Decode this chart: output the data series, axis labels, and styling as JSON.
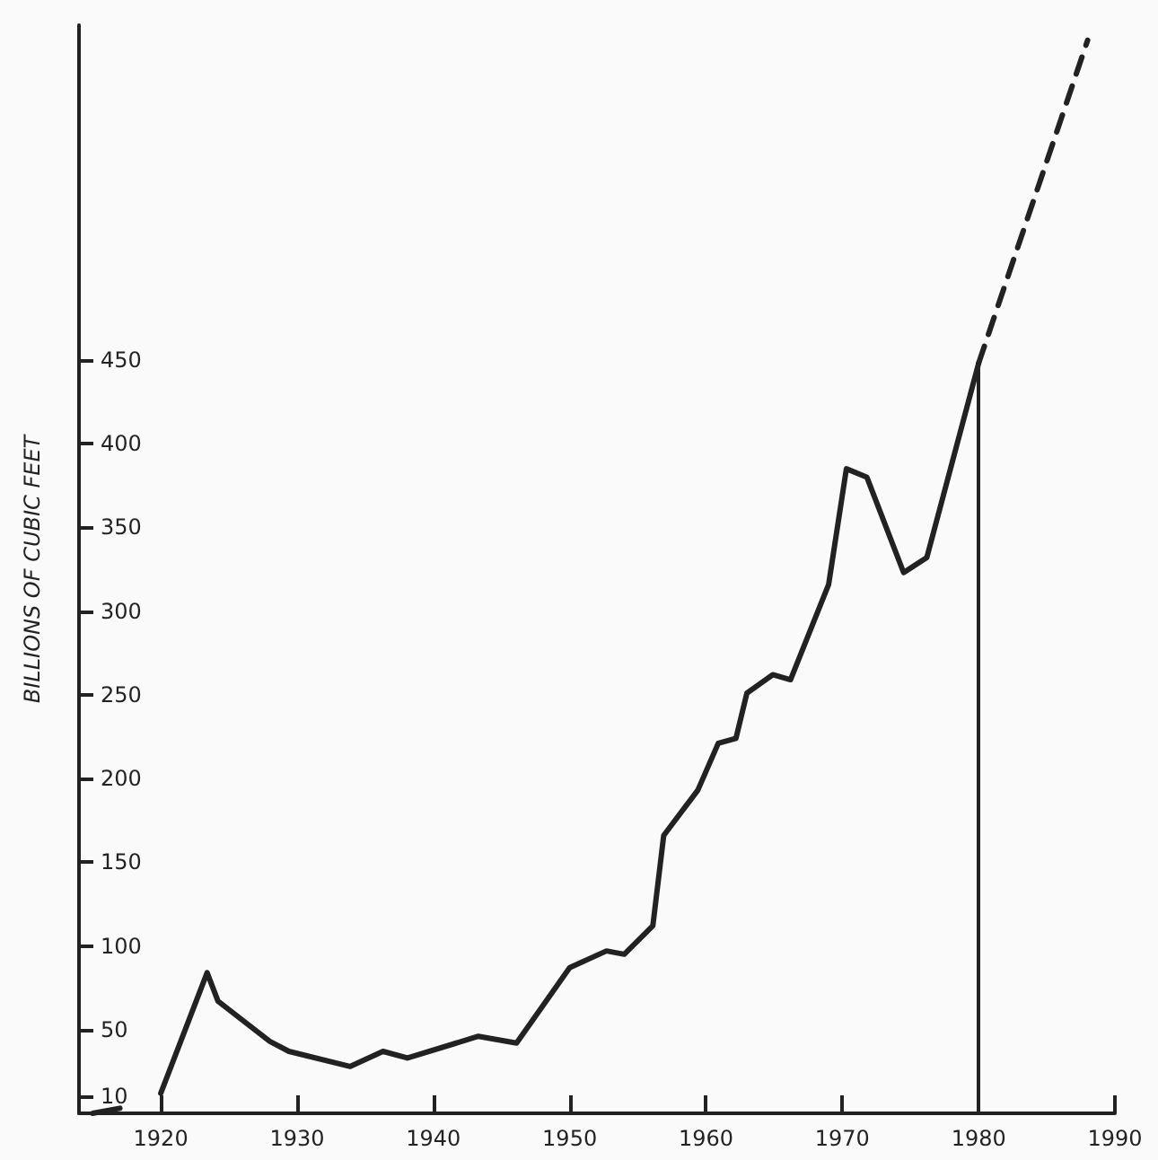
{
  "chart_data": {
    "type": "line",
    "ylabel": "BILLIONS OF CUBIC FEET",
    "xlim": [
      1914,
      1990
    ],
    "xticks": [
      1920,
      1930,
      1940,
      1950,
      1960,
      1970,
      1980,
      1990
    ],
    "ylim": [
      0,
      650
    ],
    "yticks": [
      10,
      50,
      100,
      150,
      200,
      250,
      300,
      350,
      400,
      450
    ],
    "marker": "none",
    "grid": false,
    "series": [
      {
        "color": "#222222",
        "line_style": "solid",
        "x": [
          1915,
          1917,
          1918,
          1920,
          1923.4,
          1924.2,
          1928,
          1929.4,
          1933.9,
          1936.3,
          1938.1,
          1943.3,
          1946.1,
          1950,
          1952.7,
          1954,
          1956.1,
          1956.9,
          1959.4,
          1960.9,
          1962.2,
          1963,
          1964.9,
          1966.2,
          1969,
          1970.3,
          1971.8,
          1974.5,
          1976.2,
          1980
        ],
        "values": [
          0,
          3,
          null,
          12,
          84,
          67,
          43,
          37,
          28,
          37,
          33,
          46,
          42,
          87,
          97,
          95,
          112,
          166,
          193,
          221,
          224,
          251,
          262,
          259,
          316,
          385,
          380,
          323,
          332,
          448
        ]
      },
      {
        "color": "#222222",
        "line_style": "dashed",
        "x": [
          1980,
          1988
        ],
        "values": [
          448,
          641
        ]
      }
    ],
    "ref_lines": [
      {
        "axis": "x",
        "value": 1980,
        "color": "#222222",
        "line_style": "solid"
      }
    ]
  }
}
